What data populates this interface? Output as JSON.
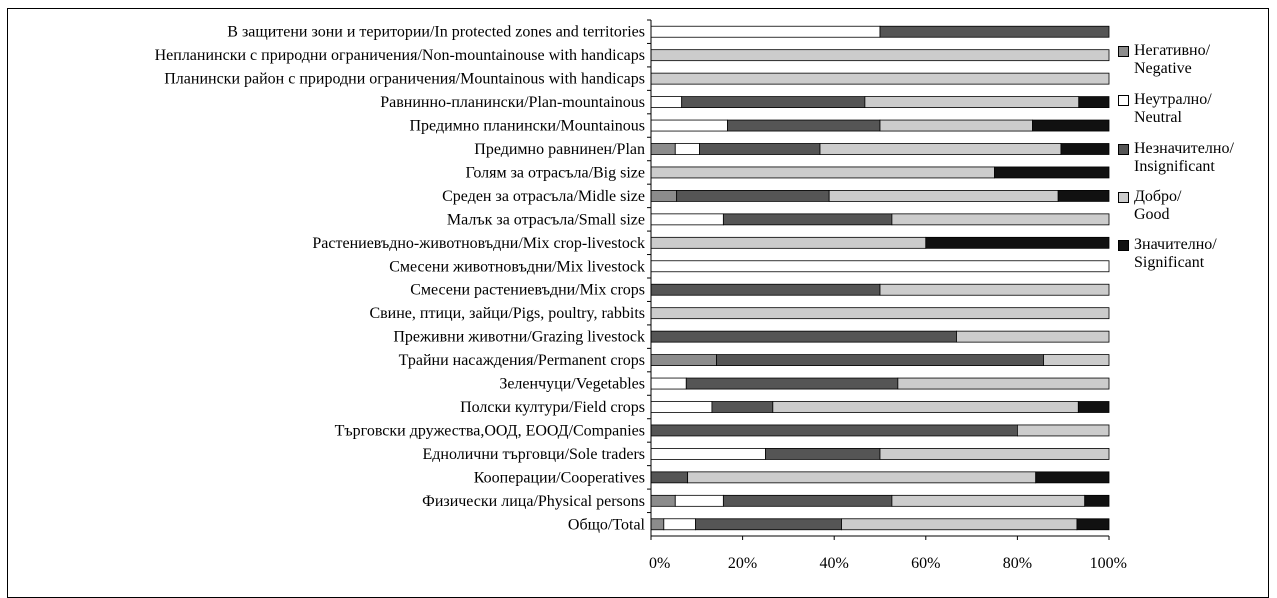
{
  "chart_data": {
    "type": "bar",
    "orientation": "horizontal",
    "stacked": "percent",
    "title": "",
    "xlabel": "",
    "ylabel": "",
    "xlim": [
      0,
      100
    ],
    "x_ticks": [
      "0%",
      "20%",
      "40%",
      "60%",
      "80%",
      "100%"
    ],
    "grid": false,
    "legend_position": "right",
    "categories": [
      "В защитени зони и територии/In protected zones and territories",
      "Непланински с природни ограничения/Non-mountainouse with handicaps",
      "Планински район с природни ограничения/Mountainous with handicaps",
      "Равнинно-планински/Plan-mountainous",
      "Предимно планински/Mountainous",
      "Предимно равнинен/Plan",
      "Голям за отрасъла/Big size",
      "Среден за отрасъла/Midle size",
      "Малък за отрасъла/Small size",
      "Растениевъдно-животновъдни/Mix crop-livestock",
      "Смесени животновъдни/Mix livestock",
      "Смесени растениевъдни/Mix crops",
      "Свине, птици, зайци/Pigs, poultry, rabbits",
      "Преживни животни/Grazing livestock",
      "Трайни насаждения/Permanent crops",
      "Зеленчуци/Vegetables",
      "Полски култури/Field crops",
      "Търговски дружества,ООД, ЕООД/Companies",
      "Еднолични търговци/Sole traders",
      "Кооперации/Cooperatives",
      "Физически лица/Physical persons",
      "Общо/Total"
    ],
    "series": [
      {
        "name": "Негативно/\nNegative",
        "color": "#8c8c8c",
        "values": [
          0,
          0,
          0,
          0,
          0,
          5.3,
          0,
          5.6,
          0,
          0,
          0,
          0,
          0,
          0,
          14.3,
          0,
          0,
          0,
          0,
          0,
          5.3,
          2.8
        ]
      },
      {
        "name": "Неутрално/\nNeutral",
        "color": "#ffffff",
        "values": [
          50,
          0,
          0,
          6.7,
          16.7,
          5.3,
          0,
          0,
          15.8,
          0,
          100,
          0,
          0,
          0,
          0,
          7.7,
          13.3,
          0,
          25,
          0,
          10.5,
          6.9
        ]
      },
      {
        "name": "Незначително/\nInsignificant",
        "color": "#555555",
        "values": [
          50,
          0,
          0,
          40,
          33.3,
          26.3,
          0,
          33.3,
          36.8,
          0,
          0,
          50,
          0,
          66.7,
          71.4,
          46.2,
          13.3,
          80,
          25,
          8,
          36.8,
          31.9
        ]
      },
      {
        "name": "Добро/\nGood",
        "color": "#cccccc",
        "values": [
          0,
          100,
          100,
          46.7,
          33.3,
          52.6,
          75,
          50,
          47.4,
          60,
          0,
          50,
          100,
          33.3,
          14.3,
          46.1,
          66.7,
          20,
          50,
          76,
          42.1,
          51.4
        ]
      },
      {
        "name": "Значително/\nSignificant",
        "color": "#111111",
        "values": [
          0,
          0,
          0,
          6.6,
          16.7,
          10.5,
          25,
          11.1,
          0,
          40,
          0,
          0,
          0,
          0,
          0,
          0,
          6.7,
          0,
          0,
          16,
          5.3,
          7
        ]
      }
    ]
  }
}
